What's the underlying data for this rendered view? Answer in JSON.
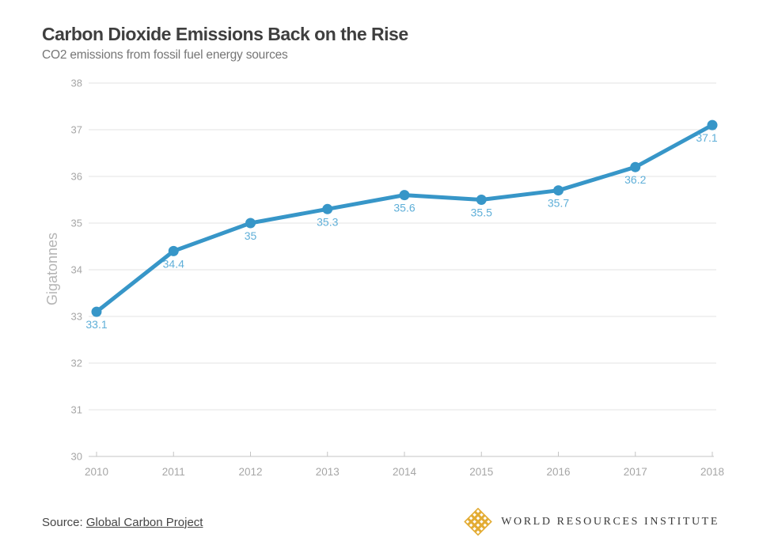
{
  "chart_data": {
    "type": "line",
    "title": "Carbon Dioxide Emissions Back on the Rise",
    "subtitle": "CO2 emissions from fossil fuel energy sources",
    "categories": [
      "2010",
      "2011",
      "2012",
      "2013",
      "2014",
      "2015",
      "2016",
      "2017",
      "2018"
    ],
    "values": [
      33.1,
      34.4,
      35,
      35.3,
      35.6,
      35.5,
      35.7,
      36.2,
      37.1
    ],
    "point_labels": [
      "33.1",
      "34.4",
      "35",
      "35.3",
      "35.6",
      "35.5",
      "35.7",
      "36.2",
      "37.1"
    ],
    "ylabel": "Gigatonnes",
    "xlabel": "",
    "ylim": [
      30,
      38
    ],
    "ytick_interval": 1,
    "yticks": [
      30,
      31,
      32,
      33,
      34,
      35,
      36,
      37,
      38
    ],
    "grid": true,
    "legend": false,
    "colors": {
      "line": "#3796C8",
      "marker": "#3796C8",
      "point_label": "#5FAFD8",
      "grid": "#E3E3E3",
      "axis": "#C4C4C4",
      "tick_text": "#A6A6A6",
      "axis_title": "#B5B5B5"
    }
  },
  "footer": {
    "source_prefix": "Source:",
    "source_link": "Global Carbon Project",
    "logo": {
      "icon": "wri-lattice-icon",
      "text": "WORLD RESOURCES INSTITUTE",
      "icon_color": "#E3AC34",
      "text_color": "#3A3A3A"
    }
  }
}
